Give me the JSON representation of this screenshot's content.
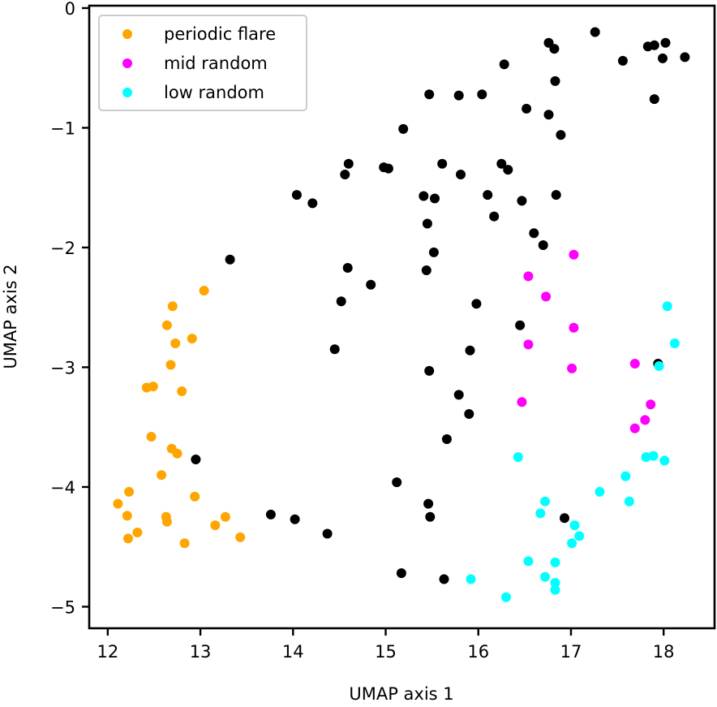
{
  "chart_data": {
    "type": "scatter",
    "title": "",
    "xlabel": "UMAP axis 1",
    "ylabel": "UMAP axis 2",
    "xlim": [
      11.8,
      18.55
    ],
    "ylim": [
      -5.18,
      0.02
    ],
    "xticks": [
      12,
      13,
      14,
      15,
      16,
      17,
      18
    ],
    "yticks": [
      0,
      -1,
      -2,
      -3,
      -4,
      -5
    ],
    "xtick_labels": [
      "12",
      "13",
      "14",
      "15",
      "16",
      "17",
      "18"
    ],
    "ytick_labels": [
      "0",
      "−1",
      "−2",
      "−3",
      "−4",
      "−5"
    ],
    "grid": false,
    "legend": {
      "position": "top-left"
    },
    "series": [
      {
        "name": "",
        "color": "#000000",
        "in_legend": false,
        "points": [
          [
            17.26,
            -0.2
          ],
          [
            16.76,
            -0.29
          ],
          [
            16.82,
            -0.34
          ],
          [
            17.83,
            -0.32
          ],
          [
            17.9,
            -0.31
          ],
          [
            18.02,
            -0.29
          ],
          [
            17.56,
            -0.44
          ],
          [
            17.99,
            -0.42
          ],
          [
            18.23,
            -0.41
          ],
          [
            16.28,
            -0.47
          ],
          [
            16.83,
            -0.61
          ],
          [
            15.47,
            -0.72
          ],
          [
            15.79,
            -0.73
          ],
          [
            16.04,
            -0.72
          ],
          [
            17.9,
            -0.76
          ],
          [
            16.52,
            -0.84
          ],
          [
            16.76,
            -0.89
          ],
          [
            15.19,
            -1.01
          ],
          [
            16.89,
            -1.06
          ],
          [
            14.6,
            -1.3
          ],
          [
            15.61,
            -1.3
          ],
          [
            14.98,
            -1.33
          ],
          [
            15.03,
            -1.34
          ],
          [
            16.25,
            -1.3
          ],
          [
            16.32,
            -1.35
          ],
          [
            14.56,
            -1.39
          ],
          [
            15.81,
            -1.39
          ],
          [
            14.04,
            -1.56
          ],
          [
            14.21,
            -1.63
          ],
          [
            15.41,
            -1.57
          ],
          [
            15.53,
            -1.59
          ],
          [
            16.1,
            -1.56
          ],
          [
            16.47,
            -1.61
          ],
          [
            16.84,
            -1.56
          ],
          [
            16.17,
            -1.74
          ],
          [
            15.45,
            -1.8
          ],
          [
            16.6,
            -1.88
          ],
          [
            16.7,
            -1.98
          ],
          [
            13.32,
            -2.1
          ],
          [
            15.52,
            -2.04
          ],
          [
            14.59,
            -2.17
          ],
          [
            15.44,
            -2.19
          ],
          [
            14.84,
            -2.31
          ],
          [
            14.52,
            -2.45
          ],
          [
            15.98,
            -2.47
          ],
          [
            16.45,
            -2.65
          ],
          [
            14.45,
            -2.85
          ],
          [
            15.91,
            -2.86
          ],
          [
            17.94,
            -2.97
          ],
          [
            15.47,
            -3.03
          ],
          [
            15.79,
            -3.23
          ],
          [
            15.9,
            -3.39
          ],
          [
            15.66,
            -3.6
          ],
          [
            12.95,
            -3.77
          ],
          [
            15.12,
            -3.96
          ],
          [
            15.46,
            -4.14
          ],
          [
            13.76,
            -4.23
          ],
          [
            14.02,
            -4.27
          ],
          [
            15.48,
            -4.25
          ],
          [
            16.93,
            -4.26
          ],
          [
            14.37,
            -4.39
          ],
          [
            15.17,
            -4.72
          ],
          [
            15.63,
            -4.77
          ]
        ]
      },
      {
        "name": "periodic flare",
        "color": "#ffa500",
        "in_legend": true,
        "points": [
          [
            13.04,
            -2.36
          ],
          [
            12.7,
            -2.49
          ],
          [
            12.64,
            -2.65
          ],
          [
            12.91,
            -2.76
          ],
          [
            12.73,
            -2.8
          ],
          [
            12.68,
            -2.98
          ],
          [
            12.42,
            -3.17
          ],
          [
            12.49,
            -3.16
          ],
          [
            12.8,
            -3.2
          ],
          [
            12.47,
            -3.58
          ],
          [
            12.69,
            -3.68
          ],
          [
            12.75,
            -3.72
          ],
          [
            12.58,
            -3.9
          ],
          [
            12.23,
            -4.04
          ],
          [
            12.94,
            -4.08
          ],
          [
            12.11,
            -4.14
          ],
          [
            12.21,
            -4.24
          ],
          [
            12.63,
            -4.25
          ],
          [
            12.64,
            -4.29
          ],
          [
            13.27,
            -4.25
          ],
          [
            13.16,
            -4.32
          ],
          [
            12.32,
            -4.38
          ],
          [
            12.22,
            -4.43
          ],
          [
            13.43,
            -4.42
          ],
          [
            12.83,
            -4.47
          ]
        ]
      },
      {
        "name": "mid random",
        "color": "#ff00ff",
        "in_legend": true,
        "points": [
          [
            17.03,
            -2.06
          ],
          [
            16.54,
            -2.24
          ],
          [
            16.73,
            -2.41
          ],
          [
            17.03,
            -2.67
          ],
          [
            16.54,
            -2.81
          ],
          [
            17.69,
            -2.97
          ],
          [
            17.01,
            -3.01
          ],
          [
            16.47,
            -3.29
          ],
          [
            17.86,
            -3.31
          ],
          [
            17.8,
            -3.44
          ],
          [
            17.69,
            -3.51
          ]
        ]
      },
      {
        "name": "low random",
        "color": "#00ffff",
        "in_legend": true,
        "points": [
          [
            18.04,
            -2.49
          ],
          [
            18.12,
            -2.8
          ],
          [
            17.95,
            -2.99
          ],
          [
            16.43,
            -3.75
          ],
          [
            17.81,
            -3.75
          ],
          [
            17.89,
            -3.74
          ],
          [
            18.01,
            -3.78
          ],
          [
            17.59,
            -3.91
          ],
          [
            17.31,
            -4.04
          ],
          [
            16.72,
            -4.12
          ],
          [
            17.63,
            -4.12
          ],
          [
            16.67,
            -4.22
          ],
          [
            17.04,
            -4.32
          ],
          [
            17.09,
            -4.41
          ],
          [
            17.01,
            -4.47
          ],
          [
            16.54,
            -4.62
          ],
          [
            16.83,
            -4.63
          ],
          [
            16.72,
            -4.75
          ],
          [
            15.92,
            -4.77
          ],
          [
            16.83,
            -4.8
          ],
          [
            16.83,
            -4.86
          ],
          [
            16.3,
            -4.92
          ]
        ]
      }
    ]
  }
}
